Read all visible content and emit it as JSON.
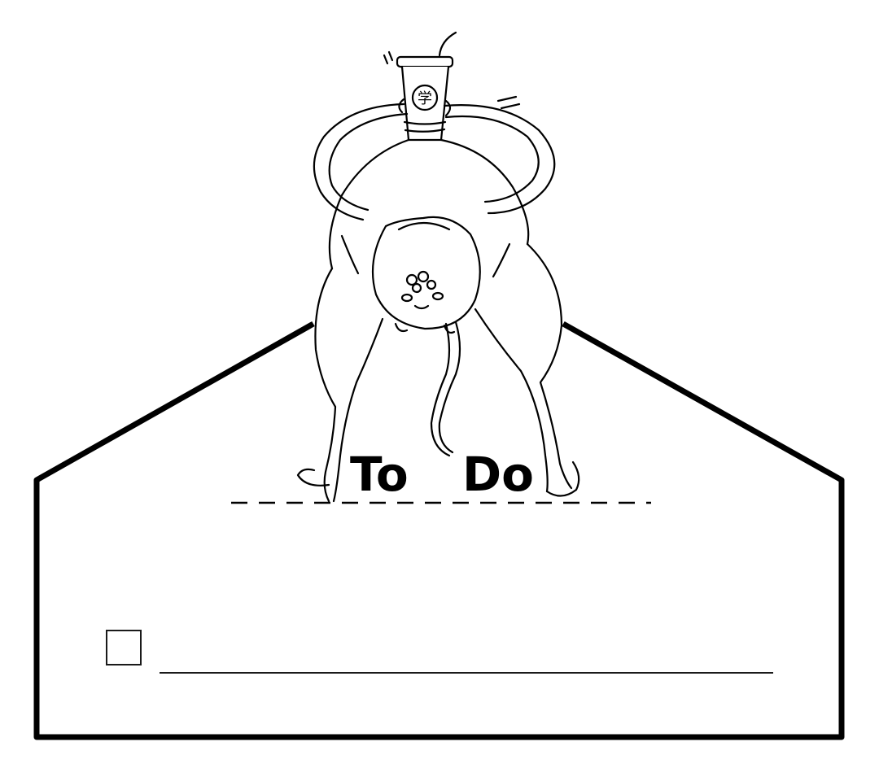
{
  "heading": {
    "word_1": "To",
    "word_2": "Do"
  },
  "cup_emblem": "学",
  "task": {
    "checked": false,
    "value": ""
  },
  "colors": {
    "ink": "#000000",
    "paper": "#ffffff"
  }
}
